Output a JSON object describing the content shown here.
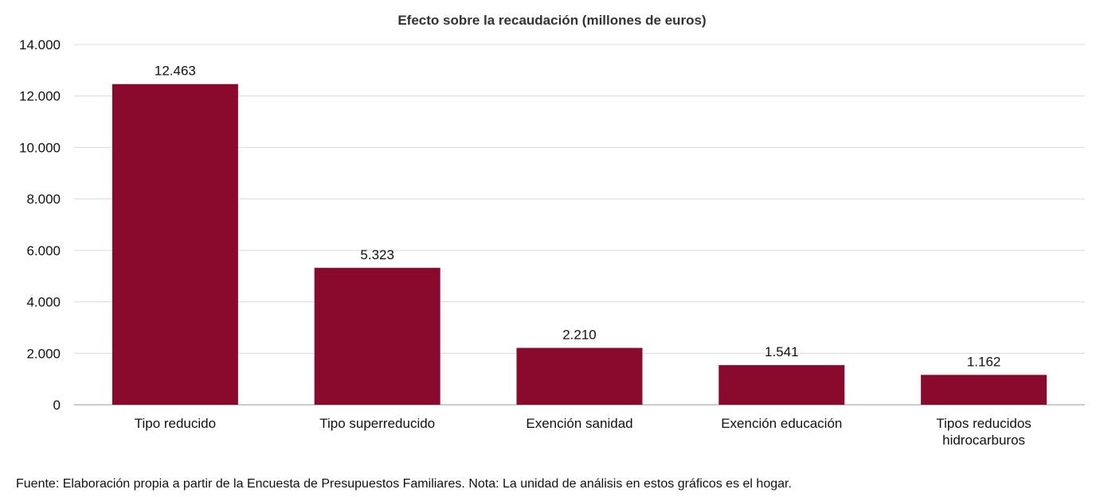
{
  "chart_data": {
    "type": "bar",
    "title": "Efecto sobre la recaudación (millones de euros)",
    "categories": [
      "Tipo reducido",
      "Tipo superreducido",
      "Exención sanidad",
      "Exención educación",
      "Tipos reducidos hidrocarburos"
    ],
    "values": [
      12463,
      5323,
      2210,
      1541,
      1162
    ],
    "data_labels": [
      "12.463",
      "5.323",
      "2.210",
      "1.541",
      "1.162"
    ],
    "ylim": [
      0,
      14000
    ],
    "yticks": [
      0,
      2000,
      4000,
      6000,
      8000,
      10000,
      12000,
      14000
    ],
    "ytick_labels": [
      "0",
      "2.000",
      "4.000",
      "6.000",
      "8.000",
      "10.000",
      "12.000",
      "14.000"
    ],
    "xlabel": "",
    "ylabel": "",
    "grid": true,
    "legend": "none",
    "bar_color": "#8a0a2e"
  },
  "source_note": "Fuente: Elaboración propia a partir de la Encuesta de Presupuestos Familiares. Nota: La unidad de análisis en estos gráficos es el hogar."
}
